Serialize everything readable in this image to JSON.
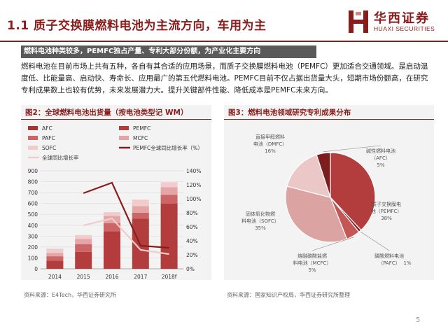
{
  "header": {
    "title": "1.1 质子交换膜燃料电池为主流方向，车用为主",
    "logo_cn": "华西证券",
    "logo_en": "HUAXI SECURITIES"
  },
  "intro": {
    "banner": "燃料电池种类较多，PEMFC独占产量、专利大部分份额，为产业化主要方向",
    "paragraph": "燃料电池在目前市场上共有五种，各自有其合适的应用场景，而质子交换膜燃料电池（PEMFC）更加适合交通领域。是启动温度低、比能量高、启动快、寿命长、应用最广的第五代燃料电池。PEMFC目前不仅占据出货量大头，短期市场份额高，在研究专利成果数上也较有优势，未来发展潜力大。提升关键部件性能、降低成本是PEMFC未来方向。"
  },
  "figure2": {
    "title": "图2：全球燃料电池出货量（按电池类型记 WM）",
    "source": "资料来源：E4Tech，华西证券研究所"
  },
  "figure3": {
    "title": "图3：燃料电池领域研究专利成果分布",
    "source": "资料来源：国家知识产权局，华西证券研究所整理"
  },
  "page_number": "5",
  "chart_data": [
    {
      "type": "bar",
      "stacked": true,
      "categories": [
        "2014",
        "2015",
        "2016",
        "2017",
        "2018f"
      ],
      "y_left_ticks": [
        "0",
        "100",
        "200",
        "300",
        "400",
        "500",
        "600",
        "700",
        "800",
        "900"
      ],
      "y_right_ticks": [
        "0%",
        "20%",
        "40%",
        "60%",
        "80%",
        "100%",
        "120%",
        "140%"
      ],
      "ylim": [
        0,
        900
      ],
      "y2lim": [
        0,
        1.4
      ],
      "series": [
        {
          "name": "AFC",
          "kind": "bar",
          "color": "#a83535",
          "values": [
            0,
            0,
            0,
            0,
            0
          ]
        },
        {
          "name": "PEMFC",
          "kind": "bar",
          "color": "#b33d3d",
          "values": [
            75,
            155,
            345,
            460,
            600
          ]
        },
        {
          "name": "PAFC",
          "kind": "bar",
          "color": "#cc6666",
          "values": [
            40,
            70,
            75,
            55,
            80
          ]
        },
        {
          "name": "MCFC",
          "kind": "bar",
          "color": "#e3a5a5",
          "values": [
            30,
            50,
            65,
            60,
            70
          ]
        },
        {
          "name": "SOFC",
          "kind": "bar",
          "color": "#f2cccc",
          "values": [
            40,
            35,
            35,
            60,
            45
          ]
        },
        {
          "name": "PEMFC全球同比增长率（%）",
          "kind": "line",
          "axis": "right",
          "color": "#8b1c1c",
          "x": [
            "2015",
            "2016",
            "2017",
            "2018f"
          ],
          "values": [
            1.08,
            1.23,
            0.33,
            0.3
          ]
        },
        {
          "name": "全球同比增长率",
          "kind": "line",
          "axis": "right",
          "color": "#f2cccc",
          "x": [
            "2015",
            "2016",
            "2017",
            "2018f"
          ],
          "values": [
            0.62,
            0.72,
            0.27,
            0.21
          ]
        }
      ]
    },
    {
      "type": "pie",
      "slices": [
        {
          "label": "质子交换膜电池（PEMFC）",
          "value": 38,
          "display": "38%",
          "color": "#b33d3d"
        },
        {
          "label": "磷酸燃料电池（PAFC）",
          "value": 1,
          "display": "1%",
          "color": "#8b1c1c"
        },
        {
          "label": "熔融碳酸盐燃料电池（MCFC）",
          "value": 5,
          "display": "5%",
          "color": "#c45656"
        },
        {
          "label": "固体氧化物燃料电池（SOFC）",
          "value": 35,
          "display": "35%",
          "color": "#dca3a3"
        },
        {
          "label": "直接甲醇燃料电池（DMFC）",
          "value": 16,
          "display": "16%",
          "color": "#ecc7c7"
        },
        {
          "label": "碱性燃料电池（AFC）",
          "value": 5,
          "display": "5%",
          "color": "#7c1e1e"
        }
      ]
    }
  ]
}
